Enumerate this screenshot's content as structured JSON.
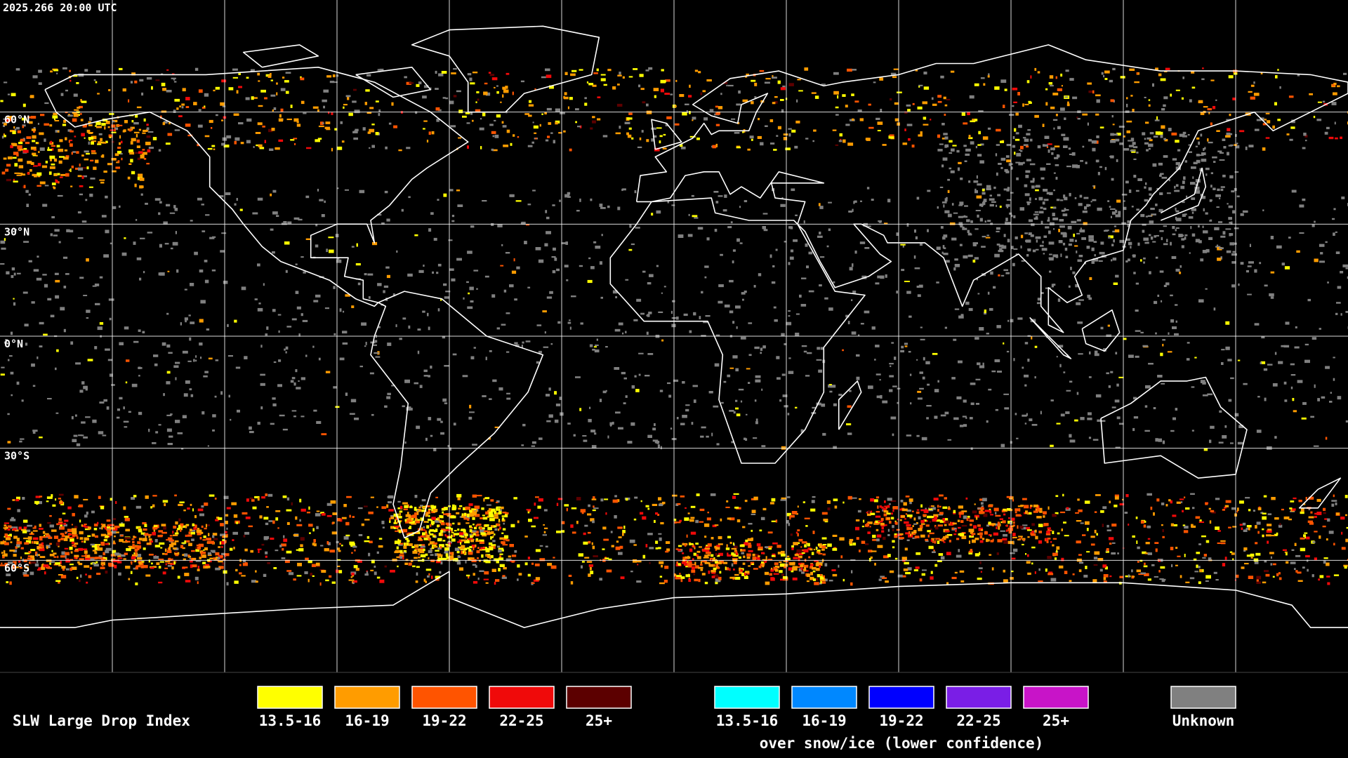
{
  "header": {
    "timestamp": "2025.266 20:00 UTC"
  },
  "map": {
    "latitude_labels": [
      "60°N",
      "30°N",
      "0°N",
      "30°S",
      "60°S"
    ]
  },
  "legend": {
    "title": "SLW Large Drop Index",
    "groups": [
      {
        "items": [
          {
            "label": "13.5-16",
            "color": "#ffff00"
          },
          {
            "label": "16-19",
            "color": "#ff9c00"
          },
          {
            "label": "19-22",
            "color": "#ff5400"
          },
          {
            "label": "22-25",
            "color": "#f00a0a"
          },
          {
            "label": "25+",
            "color": "#5c0000"
          }
        ]
      },
      {
        "items": [
          {
            "label": "13.5-16",
            "color": "#00ffff"
          },
          {
            "label": "16-19",
            "color": "#0088ff"
          },
          {
            "label": "19-22",
            "color": "#0000ff"
          },
          {
            "label": "22-25",
            "color": "#7a1ee6"
          },
          {
            "label": "25+",
            "color": "#c814c8"
          }
        ],
        "caption": "over snow/ice (lower confidence)"
      },
      {
        "items": [
          {
            "label": "Unknown",
            "color": "#808080"
          }
        ]
      }
    ]
  }
}
